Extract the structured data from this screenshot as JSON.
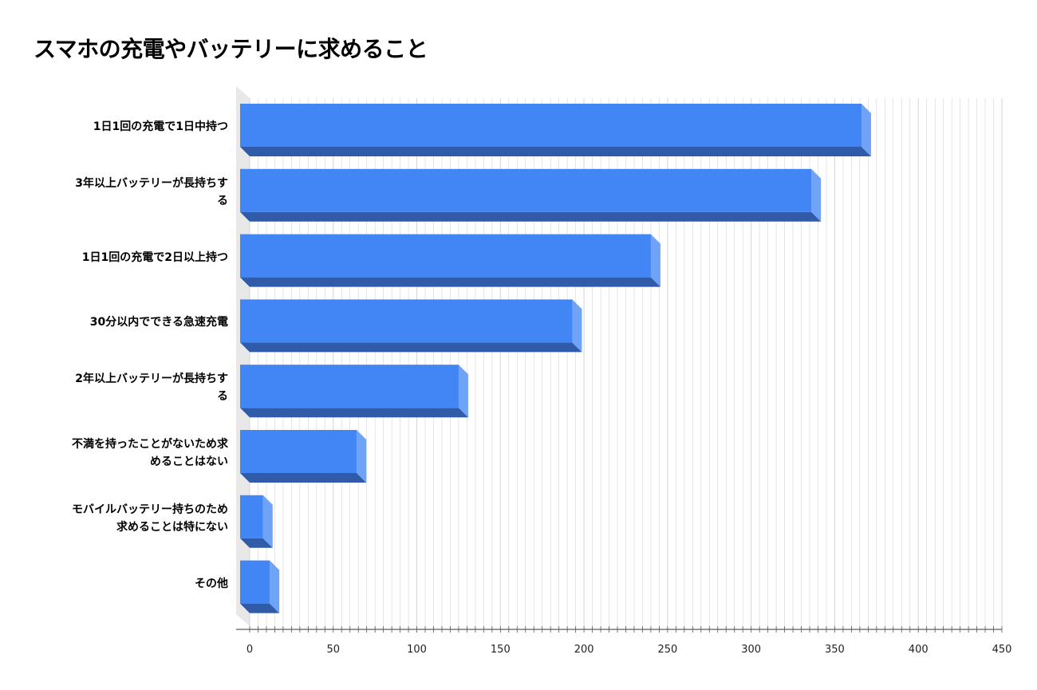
{
  "chart_data": {
    "type": "bar",
    "orientation": "horizontal",
    "title": "スマホの充電やバッテリーに求めること",
    "xlabel": "",
    "ylabel": "",
    "categories": [
      "1日1回の充電で1日中持つ",
      "3年以上バッテリーが長持ちする",
      "1日1回の充電で2日以上持つ",
      "30分以内でできる急速充電",
      "2年以上バッテリーが長持ちする",
      "不満を持ったことがないため求めることはない",
      "モバイルバッテリー持ちのため求めることは特にない",
      "その他"
    ],
    "category_display": [
      "1日1回の充電で1日中持つ",
      "3年以上バッテリーが長持ちす\nる",
      "1日1回の充電で2日以上持つ",
      "30分以内でできる急速充電",
      "2年以上バッテリーが長持ちす\nる",
      "不満を持ったことがないため求\nめることはない",
      "モバイルバッテリー持ちのため\n求めることは特にない",
      "その他"
    ],
    "values": [
      366,
      336,
      240,
      193,
      125,
      64,
      8,
      12
    ],
    "xlim": [
      0,
      450
    ],
    "xticks": [
      "0",
      "50",
      "100",
      "150",
      "200",
      "250",
      "300",
      "350",
      "400",
      "450"
    ],
    "grid": true,
    "legend": "none",
    "colors": {
      "bar_front": "#4285f4",
      "bar_side": "#6fa3f7",
      "bar_bottom": "#2f5ba8",
      "wall": "#e8e8e8",
      "grid": "#d4d4d4"
    }
  }
}
